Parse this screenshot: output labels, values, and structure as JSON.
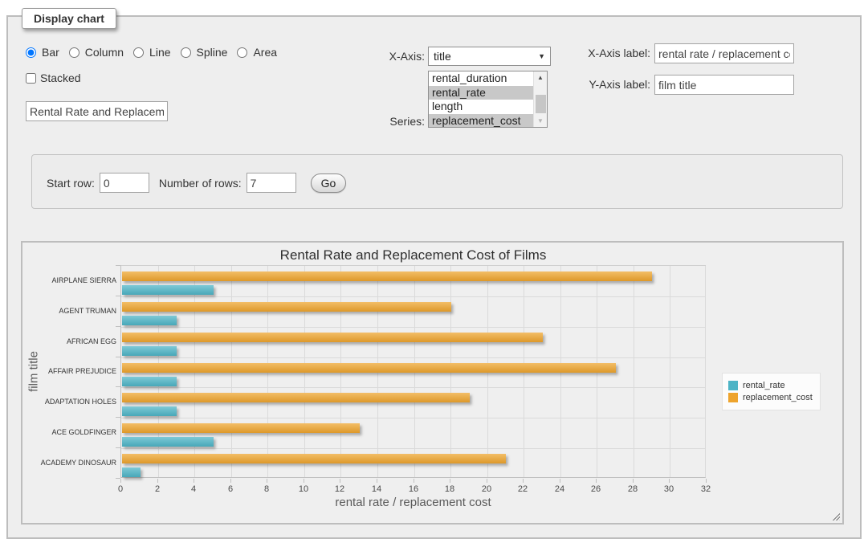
{
  "display_chart": {
    "legend": "Display chart"
  },
  "chart_types": {
    "options": [
      {
        "label": "Bar",
        "selected": true
      },
      {
        "label": "Column",
        "selected": false
      },
      {
        "label": "Line",
        "selected": false
      },
      {
        "label": "Spline",
        "selected": false
      },
      {
        "label": "Area",
        "selected": false
      }
    ]
  },
  "stacked_checkbox": {
    "label": "Stacked",
    "checked": false
  },
  "chart_title_input": {
    "value": "Rental Rate and Replacement Cost of Films"
  },
  "x_axis_select": {
    "label": "X-Axis:",
    "value": "title"
  },
  "series_list": {
    "label": "Series:",
    "options": [
      {
        "label": "rental_duration",
        "selected": false
      },
      {
        "label": "rental_rate",
        "selected": true
      },
      {
        "label": "length",
        "selected": false
      },
      {
        "label": "replacement_cost",
        "selected": true
      }
    ]
  },
  "x_axis_label_input": {
    "label": "X-Axis label:",
    "value": "rental rate / replacement cost"
  },
  "y_axis_label_input": {
    "label": "Y-Axis label:",
    "value": "film title"
  },
  "row_controls": {
    "start_row_label": "Start row:",
    "start_row_value": "0",
    "number_of_rows_label": "Number of rows:",
    "number_of_rows_value": "7",
    "go_button": "Go"
  },
  "chart_data": {
    "type": "bar",
    "orientation": "horizontal",
    "title": "Rental Rate and Replacement Cost of Films",
    "categories": [
      "AIRPLANE SIERRA",
      "AGENT TRUMAN",
      "AFRICAN EGG",
      "AFFAIR PREJUDICE",
      "ADAPTATION HOLES",
      "ACE GOLDFINGER",
      "ACADEMY DINOSAUR"
    ],
    "series": [
      {
        "name": "rental_rate",
        "color": "#4DB4C6",
        "values": [
          4.99,
          2.99,
          2.99,
          2.99,
          2.99,
          4.99,
          0.99
        ]
      },
      {
        "name": "replacement_cost",
        "color": "#EEA42D",
        "values": [
          28.99,
          17.99,
          22.99,
          26.99,
          18.99,
          12.99,
          20.99
        ]
      }
    ],
    "xlabel": "rental rate / replacement cost",
    "ylabel": "film title",
    "xlim": [
      0,
      32
    ],
    "xtick_step": 2,
    "grid": true,
    "legend_position": "right",
    "background": "#efefef"
  }
}
